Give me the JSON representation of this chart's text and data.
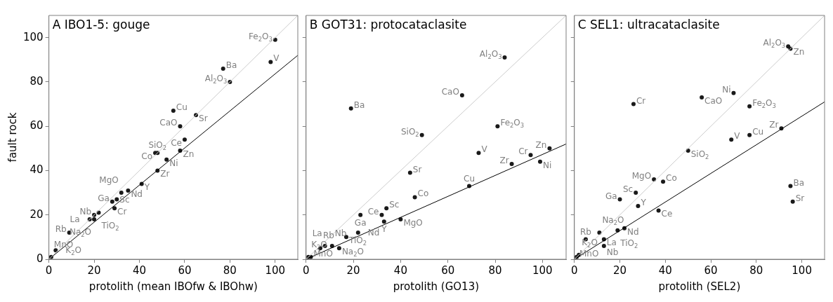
{
  "chart_data": [
    {
      "type": "scatter",
      "title": "A IBO1-5: gouge",
      "xlabel": "protolith (mean IBOfw & IBOhw)",
      "ylabel": "fault rock",
      "xlim": [
        0,
        110
      ],
      "ylim": [
        0,
        110
      ],
      "xticks": [
        0,
        20,
        40,
        60,
        80,
        100
      ],
      "yticks": [
        0,
        20,
        40,
        60,
        80,
        100
      ],
      "grid": false,
      "marker": "circle",
      "series": [
        {
          "type": "line",
          "color": "#cccccc",
          "marker": "none",
          "x": [
            0,
            110
          ],
          "values": [
            0,
            110
          ]
        },
        {
          "type": "line",
          "color": "#000000",
          "marker": "none",
          "x": [
            0,
            110
          ],
          "values": [
            0,
            92
          ]
        },
        {
          "type": "scatter",
          "color": "#1a1a1a",
          "x": [
            100,
            98,
            77,
            80,
            55,
            65,
            58,
            60,
            58,
            47,
            48,
            52,
            48,
            41,
            32,
            35,
            30,
            28,
            29,
            18,
            20,
            20,
            22,
            9,
            3,
            1
          ],
          "values": [
            99,
            89,
            86,
            80,
            67,
            65,
            60,
            54,
            49,
            48,
            48,
            45,
            40,
            34,
            30,
            31,
            27,
            26,
            23,
            18,
            18,
            20,
            21,
            12,
            4,
            1
          ]
        }
      ],
      "annotations": [
        {
          "text": "Fe$_{2}$O$_{3}$",
          "x": 100,
          "y": 99
        },
        {
          "text": "V",
          "x": 98,
          "y": 89
        },
        {
          "text": "Ba",
          "x": 77,
          "y": 86
        },
        {
          "text": "Al$_{2}$O$_{3}$",
          "x": 80,
          "y": 80
        },
        {
          "text": "Cu",
          "x": 55,
          "y": 67
        },
        {
          "text": "Sr",
          "x": 65,
          "y": 65
        },
        {
          "text": "CaO",
          "x": 58,
          "y": 60
        },
        {
          "text": "Ce",
          "x": 60,
          "y": 54
        },
        {
          "text": "Zn",
          "x": 58,
          "y": 49
        },
        {
          "text": "Co",
          "x": 47,
          "y": 48
        },
        {
          "text": "SiO$_{2}$",
          "x": 48,
          "y": 48
        },
        {
          "text": "Ni",
          "x": 52,
          "y": 45
        },
        {
          "text": "Zr",
          "x": 48,
          "y": 40
        },
        {
          "text": "Y",
          "x": 41,
          "y": 34
        },
        {
          "text": "MgO",
          "x": 32,
          "y": 30
        },
        {
          "text": "Nd",
          "x": 35,
          "y": 31
        },
        {
          "text": "Sc",
          "x": 30,
          "y": 27
        },
        {
          "text": "Ga",
          "x": 28,
          "y": 26
        },
        {
          "text": "Cr",
          "x": 29,
          "y": 23
        },
        {
          "text": "La",
          "x": 18,
          "y": 18
        },
        {
          "text": "Na$_{2}$O",
          "x": 20,
          "y": 18
        },
        {
          "text": "Nb",
          "x": 20,
          "y": 20
        },
        {
          "text": "TiO$_{2}$",
          "x": 22,
          "y": 21
        },
        {
          "text": "Rb",
          "x": 9,
          "y": 12
        },
        {
          "text": "K$_{2}$O",
          "x": 3,
          "y": 4
        },
        {
          "text": "MnO",
          "x": 1,
          "y": 1
        }
      ]
    },
    {
      "type": "scatter",
      "title": "B GOT31: protocataclasite",
      "xlabel": "protolith (GO13)",
      "xlim": [
        0,
        110
      ],
      "ylim": [
        0,
        110
      ],
      "xticks": [
        0,
        20,
        40,
        60,
        80,
        100
      ],
      "yticks": [
        0,
        20,
        40,
        60,
        80,
        100
      ],
      "tick_labels": "x",
      "grid": false,
      "marker": "circle",
      "series": [
        {
          "type": "line",
          "color": "#cccccc",
          "marker": "none",
          "x": [
            0,
            110
          ],
          "values": [
            0,
            110
          ]
        },
        {
          "type": "line",
          "color": "#000000",
          "marker": "none",
          "x": [
            0,
            110
          ],
          "values": [
            0,
            52
          ]
        },
        {
          "type": "scatter",
          "color": "#1a1a1a",
          "x": [
            84,
            66,
            19,
            81,
            49,
            73,
            103,
            95,
            87,
            99,
            44,
            69,
            46,
            34,
            23,
            32,
            33,
            40,
            22,
            17,
            14,
            6,
            8,
            11,
            2,
            1
          ],
          "values": [
            91,
            74,
            68,
            60,
            56,
            48,
            50,
            47,
            43,
            44,
            39,
            33,
            28,
            23,
            20,
            20,
            17,
            18,
            12,
            10,
            5,
            5,
            6,
            6,
            1,
            1
          ]
        }
      ],
      "annotations": [
        {
          "text": "Al$_{2}$O$_{3}$",
          "x": 84,
          "y": 91
        },
        {
          "text": "CaO",
          "x": 66,
          "y": 74
        },
        {
          "text": "Ba",
          "x": 19,
          "y": 68
        },
        {
          "text": "Fe$_{2}$O$_{3}$",
          "x": 81,
          "y": 60
        },
        {
          "text": "SiO$_{2}$",
          "x": 49,
          "y": 56
        },
        {
          "text": "V",
          "x": 73,
          "y": 48
        },
        {
          "text": "Zn",
          "x": 103,
          "y": 50
        },
        {
          "text": "Cr",
          "x": 95,
          "y": 47
        },
        {
          "text": "Zr",
          "x": 87,
          "y": 43
        },
        {
          "text": "Ni",
          "x": 99,
          "y": 44
        },
        {
          "text": "Sr",
          "x": 44,
          "y": 39
        },
        {
          "text": "Cu",
          "x": 69,
          "y": 33
        },
        {
          "text": "Co",
          "x": 46,
          "y": 28
        },
        {
          "text": "Sc",
          "x": 34,
          "y": 23
        },
        {
          "text": "Ga",
          "x": 23,
          "y": 20
        },
        {
          "text": "Ce",
          "x": 32,
          "y": 20
        },
        {
          "text": "Y",
          "x": 33,
          "y": 17
        },
        {
          "text": "MgO",
          "x": 40,
          "y": 18
        },
        {
          "text": "Nd",
          "x": 22,
          "y": 12
        },
        {
          "text": "TiO$_{2}$",
          "x": 17,
          "y": 10
        },
        {
          "text": "Na$_{2}$O",
          "x": 14,
          "y": 5
        },
        {
          "text": "Rb",
          "x": 6,
          "y": 5
        },
        {
          "text": "La",
          "x": 8,
          "y": 6
        },
        {
          "text": "Nb",
          "x": 11,
          "y": 6
        },
        {
          "text": "MnO",
          "x": 2,
          "y": 1
        },
        {
          "text": "K$_{2}$O",
          "x": 1,
          "y": 1
        }
      ]
    },
    {
      "type": "scatter",
      "title": "C SEL1: ultracataclasite",
      "xlabel": "protolith (SEL2)",
      "xlim": [
        0,
        110
      ],
      "ylim": [
        0,
        110
      ],
      "xticks": [
        0,
        20,
        40,
        60,
        80,
        100
      ],
      "yticks": [
        0,
        20,
        40,
        60,
        80,
        100
      ],
      "tick_labels": "x",
      "grid": false,
      "marker": "circle",
      "series": [
        {
          "type": "line",
          "color": "#cccccc",
          "marker": "none",
          "x": [
            0,
            110
          ],
          "values": [
            0,
            110
          ]
        },
        {
          "type": "line",
          "color": "#000000",
          "marker": "none",
          "x": [
            0,
            110
          ],
          "values": [
            0,
            71
          ]
        },
        {
          "type": "scatter",
          "color": "#1a1a1a",
          "x": [
            94,
            95,
            70,
            56,
            26,
            77,
            91,
            77,
            69,
            50,
            35,
            39,
            95,
            96,
            27,
            20,
            28,
            37,
            22,
            19,
            11,
            13,
            13,
            5,
            2,
            1
          ],
          "values": [
            96,
            95,
            75,
            73,
            70,
            69,
            59,
            56,
            54,
            49,
            36,
            35,
            33,
            26,
            30,
            27,
            24,
            22,
            14,
            13,
            12,
            9,
            6,
            9,
            2,
            1
          ]
        }
      ],
      "annotations": [
        {
          "text": "Al$_{2}$O$_{3}$",
          "x": 94,
          "y": 96
        },
        {
          "text": "Zn",
          "x": 95,
          "y": 95
        },
        {
          "text": "Ni",
          "x": 70,
          "y": 75
        },
        {
          "text": "CaO",
          "x": 56,
          "y": 73
        },
        {
          "text": "Cr",
          "x": 26,
          "y": 70
        },
        {
          "text": "Fe$_{2}$O$_{3}$",
          "x": 77,
          "y": 69
        },
        {
          "text": "Zr",
          "x": 91,
          "y": 59
        },
        {
          "text": "Cu",
          "x": 77,
          "y": 56
        },
        {
          "text": "V",
          "x": 69,
          "y": 54
        },
        {
          "text": "SiO$_{2}$",
          "x": 50,
          "y": 49
        },
        {
          "text": "MgO",
          "x": 35,
          "y": 36
        },
        {
          "text": "Co",
          "x": 39,
          "y": 35
        },
        {
          "text": "Ba",
          "x": 95,
          "y": 33
        },
        {
          "text": "Sr",
          "x": 96,
          "y": 26
        },
        {
          "text": "Sc",
          "x": 27,
          "y": 30
        },
        {
          "text": "Ga",
          "x": 20,
          "y": 27
        },
        {
          "text": "Y",
          "x": 28,
          "y": 24
        },
        {
          "text": "Ce",
          "x": 37,
          "y": 22
        },
        {
          "text": "Nd",
          "x": 22,
          "y": 14
        },
        {
          "text": "TiO$_{2}$",
          "x": 19,
          "y": 13
        },
        {
          "text": "Na$_{2}$O",
          "x": 11,
          "y": 12
        },
        {
          "text": "Nb",
          "x": 13,
          "y": 9
        },
        {
          "text": "La",
          "x": 13,
          "y": 6
        },
        {
          "text": "Rb",
          "x": 5,
          "y": 9
        },
        {
          "text": "K$_{2}$O",
          "x": 2,
          "y": 2
        },
        {
          "text": "MnO",
          "x": 1,
          "y": 1
        }
      ]
    }
  ]
}
